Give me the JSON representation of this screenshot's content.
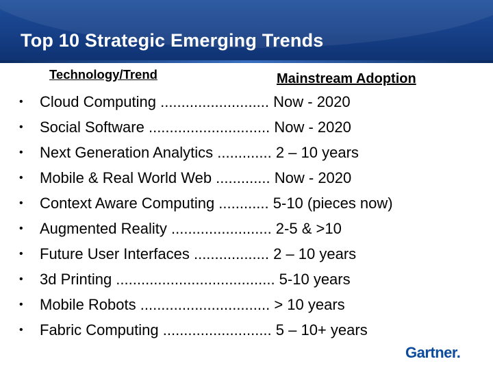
{
  "slide": {
    "title": "Top 10 Strategic Emerging Trends",
    "header_left": "Technology/Trend",
    "header_right": "Mainstream Adoption",
    "bullet_glyph": "•",
    "items": [
      {
        "text": "Cloud Computing .......................... Now - 2020"
      },
      {
        "text": "Social Software ............................. Now - 2020"
      },
      {
        "text": "Next Generation Analytics ............. 2 – 10 years"
      },
      {
        "text": "Mobile & Real World Web ............. Now - 2020"
      },
      {
        "text": "Context Aware Computing ............ 5-10 (pieces now)"
      },
      {
        "text": "Augmented Reality ........................ 2-5  &  >10"
      },
      {
        "text": "Future User Interfaces .................. 2 – 10 years"
      },
      {
        "text": "3d Printing ...................................... 5-10 years"
      },
      {
        "text": "Mobile Robots ............................... > 10 years"
      },
      {
        "text": "Fabric Computing .......................... 5 – 10+ years"
      }
    ]
  },
  "brand": {
    "logo_text": "Gartner",
    "logo_dot": ".",
    "logo_color": "#0b4a9c",
    "title_bar_color": "#163f86"
  }
}
